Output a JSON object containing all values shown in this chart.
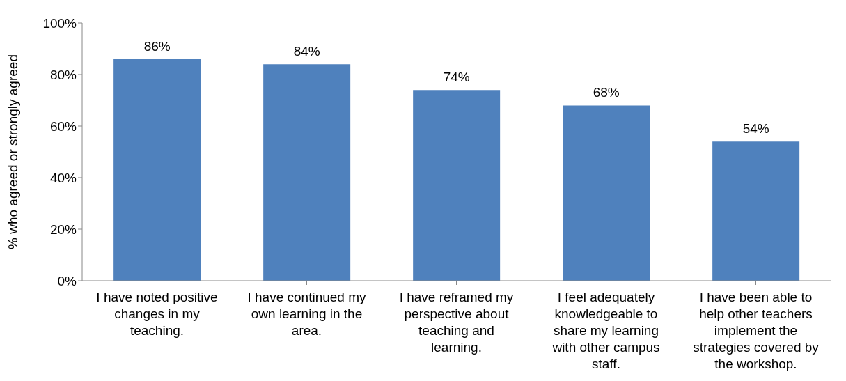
{
  "chart_data": {
    "type": "bar",
    "ylabel": "%  who agreed or strongly agreed",
    "categories": [
      "I have noted positive changes in my teaching.",
      "I have continued my own learning in the area.",
      "I have reframed my perspective about teaching and learning.",
      "I feel adequately knowledgeable to share my learning with other campus staff.",
      "I have been able to help other teachers implement the strategies covered by the workshop."
    ],
    "values": [
      86,
      84,
      74,
      68,
      54
    ],
    "value_labels": [
      "86%",
      "84%",
      "74%",
      "68%",
      "54%"
    ],
    "color": "#4f81bd",
    "ylim": [
      0,
      100
    ],
    "yticks": [
      {
        "value": 0,
        "label": "0%"
      },
      {
        "value": 20,
        "label": "20%"
      },
      {
        "value": 40,
        "label": "40%"
      },
      {
        "value": 60,
        "label": "60%"
      },
      {
        "value": 80,
        "label": "80%"
      },
      {
        "value": 100,
        "label": "100%"
      }
    ],
    "grid": false,
    "legend": false
  }
}
